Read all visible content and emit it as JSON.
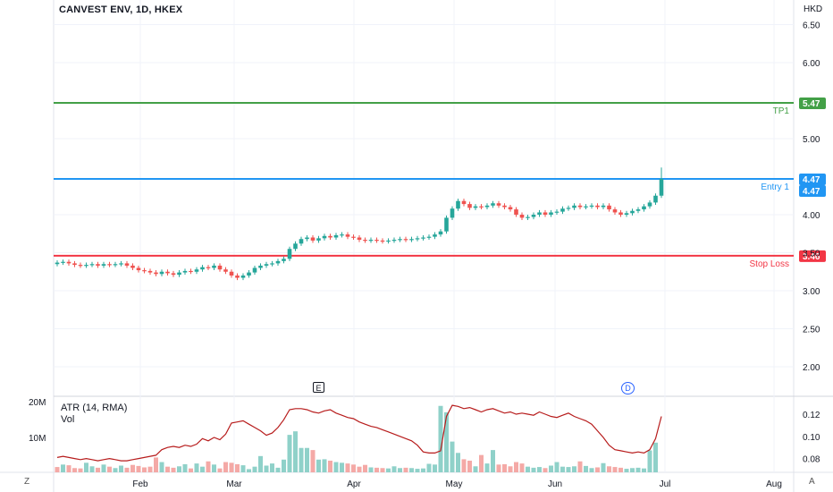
{
  "header": {
    "symbol": "CANVEST ENV, 1D, HKEX",
    "currency": "HKD"
  },
  "indicators": {
    "atr_label": "ATR (14, RMA)",
    "vol_label": "Vol"
  },
  "corner_left": "Z",
  "corner_right": "A",
  "markers": {
    "earnings": "E",
    "dividend": "D"
  },
  "colors": {
    "up": "#26a69a",
    "down": "#ef5350",
    "up_vol": "#8fd1c9",
    "down_vol": "#f4a9a6",
    "tp": "#43a047",
    "entry": "#2196f3",
    "stop": "#f23645",
    "atr": "#b71c1c"
  },
  "chart_data": [
    {
      "type": "candlestick",
      "title": "CANVEST ENV, 1D, HKEX",
      "ylabel": "HKD",
      "ylim": [
        1.66,
        6.66
      ],
      "y_ticks": [
        "6.50",
        "6.00",
        "5.00",
        "4.00",
        "3.50",
        "3.00",
        "2.50",
        "2.00"
      ],
      "x_ticks": [
        "Feb",
        "Mar",
        "Apr",
        "May",
        "Jun",
        "Jul",
        "Aug"
      ],
      "close_series": [
        3.37,
        3.38,
        3.36,
        3.34,
        3.33,
        3.34,
        3.35,
        3.33,
        3.35,
        3.34,
        3.35,
        3.36,
        3.33,
        3.3,
        3.27,
        3.26,
        3.24,
        3.22,
        3.25,
        3.23,
        3.21,
        3.24,
        3.26,
        3.25,
        3.28,
        3.31,
        3.3,
        3.33,
        3.28,
        3.25,
        3.2,
        3.17,
        3.2,
        3.24,
        3.3,
        3.33,
        3.35,
        3.36,
        3.39,
        3.42,
        3.55,
        3.62,
        3.68,
        3.7,
        3.66,
        3.69,
        3.72,
        3.7,
        3.73,
        3.74,
        3.71,
        3.7,
        3.67,
        3.66,
        3.67,
        3.66,
        3.65,
        3.66,
        3.67,
        3.68,
        3.67,
        3.68,
        3.69,
        3.7,
        3.71,
        3.74,
        3.78,
        3.96,
        4.08,
        4.18,
        4.14,
        4.09,
        4.11,
        4.1,
        4.12,
        4.15,
        4.12,
        4.1,
        4.07,
        4.0,
        3.96,
        3.97,
        4.0,
        4.03,
        4.0,
        4.03,
        4.04,
        4.08,
        4.09,
        4.12,
        4.1,
        4.11,
        4.12,
        4.1,
        4.12,
        4.07,
        4.03,
        4.0,
        4.02,
        4.05,
        4.07,
        4.11,
        4.16,
        4.25,
        4.47
      ],
      "horizontal_lines": [
        {
          "name": "TP1",
          "value": 5.47,
          "label": "5.47",
          "color": "#43a047"
        },
        {
          "name": "Entry 1",
          "value": 4.47,
          "label": "4.47",
          "color": "#2196f3"
        },
        {
          "name": "Stop Loss",
          "value": 3.46,
          "label": "3.46",
          "color": "#f23645"
        }
      ],
      "last_price": 4.47,
      "grid": true
    },
    {
      "type": "bar",
      "ylabel": "Vol",
      "ylim": [
        0,
        20000000
      ],
      "y_ticks": [
        "20M",
        "10M"
      ],
      "values_millions": [
        1.5,
        2.2,
        2.0,
        1.2,
        1.1,
        2.7,
        1.7,
        1.3,
        2.2,
        1.6,
        1.2,
        1.9,
        1.3,
        2.1,
        1.8,
        1.4,
        1.6,
        4.2,
        2.9,
        1.6,
        1.3,
        1.7,
        2.3,
        1.1,
        2.5,
        1.6,
        3.1,
        2.2,
        1.1,
        2.9,
        2.7,
        2.3,
        2.0,
        0.9,
        1.6,
        4.6,
        1.9,
        2.5,
        1.3,
        3.6,
        10.6,
        11.6,
        6.9,
        6.9,
        6.3,
        3.6,
        3.7,
        3.3,
        2.9,
        2.7,
        2.5,
        2.2,
        1.6,
        2.1,
        1.4,
        1.3,
        1.2,
        1.1,
        1.7,
        1.2,
        1.3,
        1.2,
        1.0,
        1.1,
        2.4,
        2.2,
        18.8,
        17.0,
        8.7,
        5.5,
        3.7,
        3.3,
        1.7,
        4.9,
        2.5,
        6.3,
        2.2,
        2.3,
        1.7,
        2.9,
        2.5,
        1.6,
        1.3,
        1.5,
        1.2,
        1.9,
        2.9,
        1.6,
        1.5,
        1.7,
        3.1,
        1.8,
        1.2,
        1.4,
        2.6,
        1.7,
        1.5,
        1.3,
        1.0,
        1.2,
        1.3,
        1.1,
        6.2,
        8.4
      ],
      "down_days": [
        0,
        2,
        3,
        4,
        7,
        9,
        12,
        13,
        14,
        15,
        16,
        17,
        19,
        20,
        23,
        26,
        28,
        29,
        30,
        31,
        44,
        47,
        50,
        51,
        52,
        53,
        55,
        56,
        60,
        70,
        71,
        73,
        76,
        77,
        78,
        79,
        80,
        84,
        90,
        93,
        95,
        96,
        97
      ]
    },
    {
      "type": "line",
      "name": "ATR (14, RMA)",
      "ylim": [
        0.065,
        0.135
      ],
      "y_ticks": [
        "0.12",
        "0.10",
        "0.08"
      ],
      "values": [
        0.081,
        0.082,
        0.081,
        0.08,
        0.079,
        0.08,
        0.079,
        0.078,
        0.079,
        0.08,
        0.079,
        0.078,
        0.078,
        0.079,
        0.08,
        0.081,
        0.082,
        0.083,
        0.088,
        0.09,
        0.091,
        0.09,
        0.092,
        0.091,
        0.093,
        0.098,
        0.096,
        0.099,
        0.097,
        0.102,
        0.112,
        0.113,
        0.114,
        0.111,
        0.108,
        0.105,
        0.101,
        0.103,
        0.108,
        0.115,
        0.124,
        0.125,
        0.125,
        0.124,
        0.122,
        0.121,
        0.123,
        0.124,
        0.121,
        0.119,
        0.117,
        0.116,
        0.113,
        0.111,
        0.109,
        0.108,
        0.106,
        0.104,
        0.102,
        0.1,
        0.098,
        0.096,
        0.092,
        0.086,
        0.085,
        0.085,
        0.087,
        0.118,
        0.128,
        0.127,
        0.125,
        0.126,
        0.124,
        0.122,
        0.124,
        0.125,
        0.123,
        0.121,
        0.122,
        0.12,
        0.121,
        0.12,
        0.119,
        0.122,
        0.12,
        0.118,
        0.117,
        0.119,
        0.121,
        0.118,
        0.116,
        0.114,
        0.111,
        0.105,
        0.099,
        0.092,
        0.088,
        0.087,
        0.086,
        0.085,
        0.086,
        0.085,
        0.088,
        0.098,
        0.118
      ]
    }
  ]
}
